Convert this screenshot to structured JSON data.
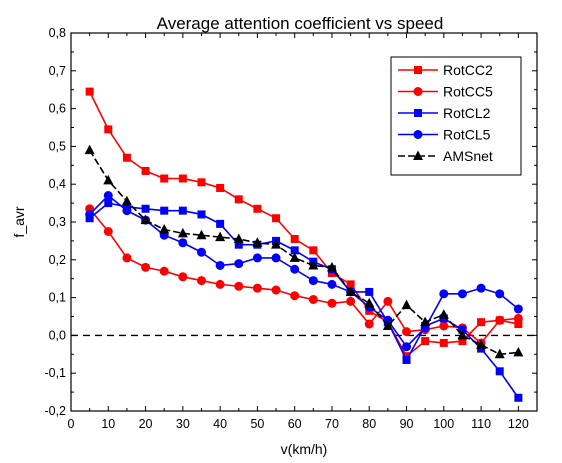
{
  "chart_data": {
    "type": "line",
    "title": "Average attention coefficient vs speed",
    "xlabel": "v(km/h)",
    "ylabel": "f_avr",
    "xlim": [
      0,
      125
    ],
    "ylim": [
      -0.2,
      0.8
    ],
    "xticks": [
      0,
      10,
      20,
      30,
      40,
      50,
      60,
      70,
      80,
      90,
      100,
      110,
      120
    ],
    "yticks": [
      -0.2,
      -0.1,
      0.0,
      0.1,
      0.2,
      0.3,
      0.4,
      0.5,
      0.6,
      0.7,
      0.8
    ],
    "xtick_labels": [
      "0",
      "10",
      "20",
      "30",
      "40",
      "50",
      "60",
      "70",
      "80",
      "90",
      "100",
      "110",
      "120"
    ],
    "ytick_labels": [
      "-0,2",
      "-0,1",
      "0,0",
      "0,1",
      "0,2",
      "0,3",
      "0,4",
      "0,5",
      "0,6",
      "0,7",
      "0,8"
    ],
    "reference_line": {
      "y": 0,
      "style": "dashed"
    },
    "legend_position": "top-right",
    "grid": false,
    "x": [
      5,
      10,
      15,
      20,
      25,
      30,
      35,
      40,
      45,
      50,
      55,
      60,
      65,
      70,
      75,
      80,
      85,
      90,
      95,
      100,
      105,
      110,
      115,
      120
    ],
    "series": [
      {
        "name": "RotCC2",
        "color": "#ff0000",
        "marker": "square",
        "values": [
          0.645,
          0.545,
          0.47,
          0.435,
          0.415,
          0.415,
          0.405,
          0.39,
          0.36,
          0.335,
          0.31,
          0.255,
          0.225,
          0.165,
          0.135,
          0.065,
          0.035,
          -0.055,
          -0.015,
          -0.02,
          -0.015,
          0.035,
          0.04,
          0.03
        ]
      },
      {
        "name": "RotCC5",
        "color": "#ff0000",
        "marker": "circle",
        "values": [
          0.335,
          0.275,
          0.205,
          0.18,
          0.17,
          0.155,
          0.145,
          0.135,
          0.13,
          0.125,
          0.12,
          0.105,
          0.095,
          0.085,
          0.09,
          0.03,
          0.09,
          0.01,
          0.015,
          0.025,
          0.02,
          -0.02,
          0.04,
          0.045
        ]
      },
      {
        "name": "RotCL2",
        "color": "#0000ff",
        "marker": "square",
        "values": [
          0.31,
          0.35,
          0.34,
          0.335,
          0.33,
          0.33,
          0.32,
          0.295,
          0.24,
          0.24,
          0.25,
          0.225,
          0.195,
          0.175,
          0.115,
          0.115,
          0.035,
          -0.065,
          0.025,
          0.045,
          0.015,
          -0.035,
          -0.095,
          -0.165
        ]
      },
      {
        "name": "RotCL5",
        "color": "#0000ff",
        "marker": "circle",
        "values": [
          0.32,
          0.37,
          0.33,
          0.305,
          0.265,
          0.245,
          0.22,
          0.185,
          0.19,
          0.205,
          0.205,
          0.175,
          0.145,
          0.135,
          0.115,
          0.075,
          0.04,
          -0.03,
          0.02,
          0.11,
          0.11,
          0.125,
          0.11,
          0.07
        ]
      },
      {
        "name": "AMSnet",
        "color": "#000000",
        "marker": "triangle",
        "dashed": true,
        "values": [
          0.49,
          0.41,
          0.355,
          0.305,
          0.28,
          0.27,
          0.265,
          0.26,
          0.255,
          0.245,
          0.24,
          0.205,
          0.185,
          0.18,
          0.115,
          0.085,
          0.025,
          0.08,
          0.035,
          0.055,
          0.0,
          -0.025,
          -0.05,
          -0.045
        ]
      }
    ]
  }
}
